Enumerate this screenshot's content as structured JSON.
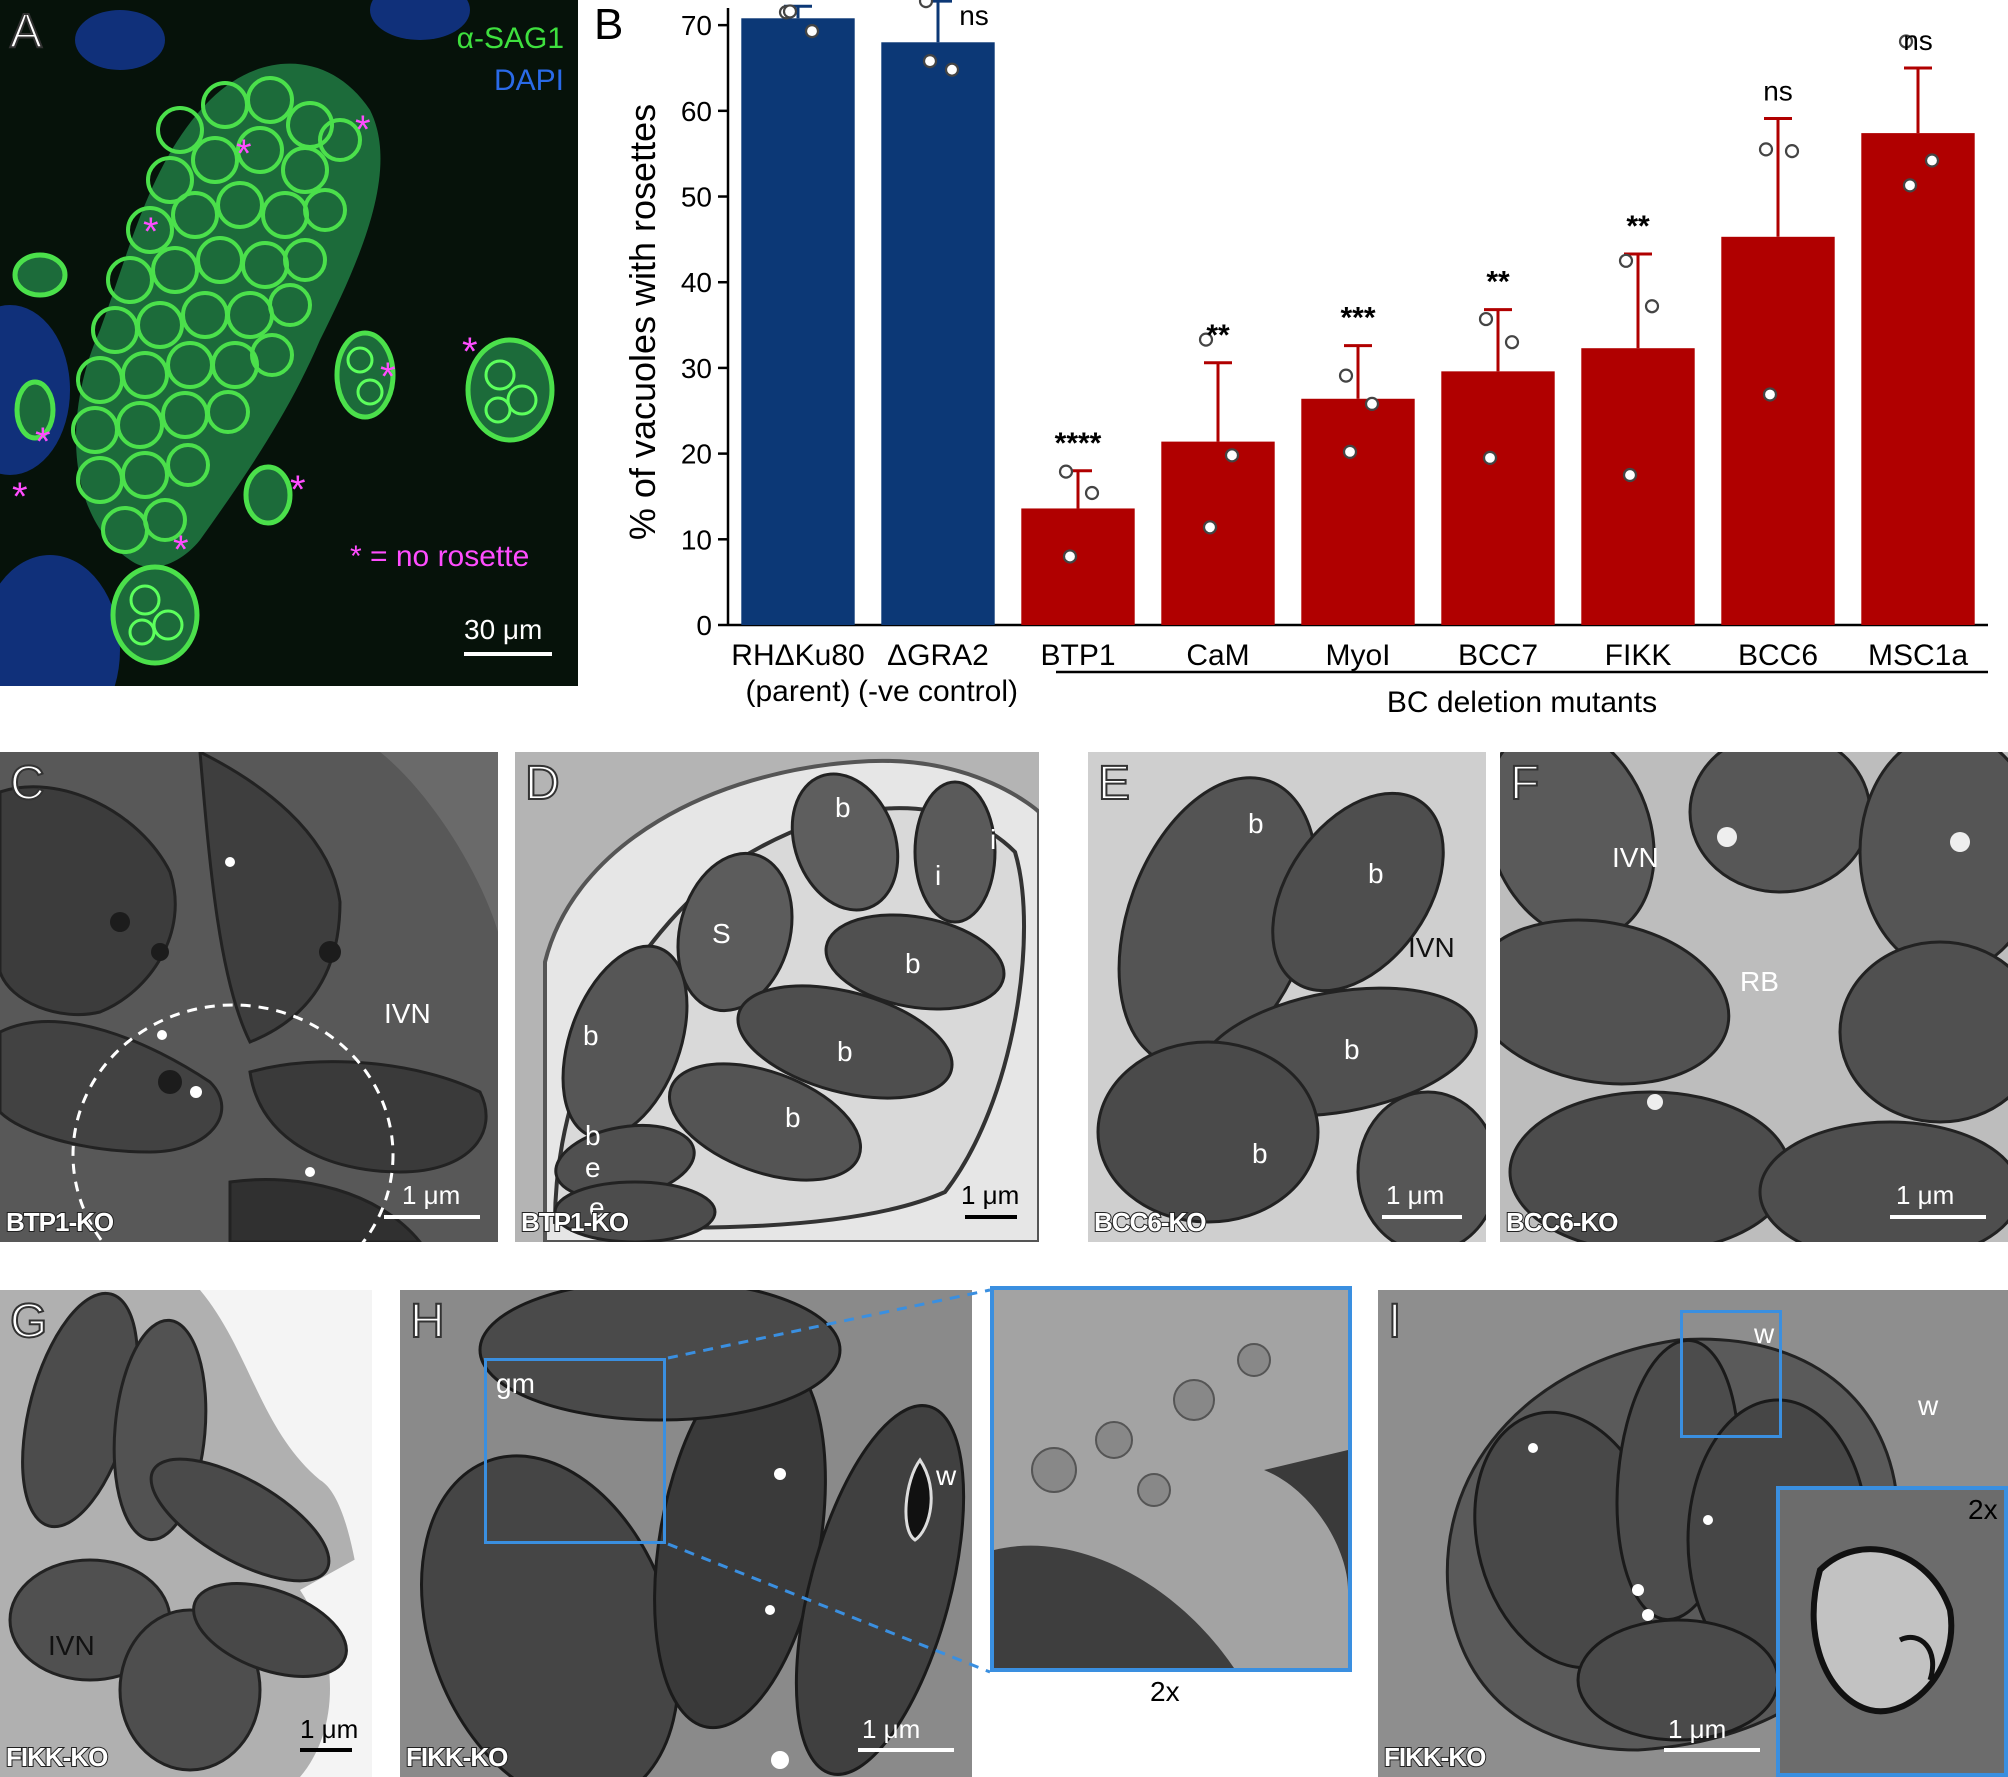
{
  "panel_letters": {
    "A": "A",
    "B": "B",
    "C": "C",
    "D": "D",
    "E": "E",
    "F": "F",
    "G": "G",
    "H": "H",
    "I": "I"
  },
  "panel_a": {
    "legend_sag1": "α-SAG1",
    "legend_dapi": "DAPI",
    "asterisk": "*",
    "no_rosette_note": "* = no rosette",
    "scale_label": "30 μm",
    "colors": {
      "sag1": "#3ccf3c",
      "dapi": "#1a4aa8",
      "asterisk": "#ff4dff"
    }
  },
  "chart_data": {
    "type": "bar",
    "ylabel": "% of vacuoles with rosettes",
    "ylim": [
      0,
      72
    ],
    "yticks": [
      0,
      10,
      20,
      30,
      40,
      50,
      60,
      70
    ],
    "categories": [
      "RHΔKu80\n(parent)",
      "ΔGRA2\n(-ve control)",
      "BTP1",
      "CaM",
      "MyoI",
      "BCC7",
      "FIKK",
      "BCC6",
      "MSC1a"
    ],
    "category_lines": [
      [
        "RHΔKu80",
        "(parent)"
      ],
      [
        "ΔGRA2",
        "(-ve control)"
      ],
      [
        "BTP1"
      ],
      [
        "CaM"
      ],
      [
        "MyoI"
      ],
      [
        "BCC7"
      ],
      [
        "FIKK"
      ],
      [
        "BCC6"
      ],
      [
        "MSC1a"
      ]
    ],
    "values": [
      70.8,
      68.0,
      13.6,
      21.4,
      26.4,
      29.6,
      32.3,
      45.3,
      57.4
    ],
    "errors": [
      1.4,
      4.8,
      4.4,
      9.2,
      6.2,
      7.2,
      11.0,
      13.8,
      7.6
    ],
    "points": [
      [
        71.5,
        69.3,
        71.6
      ],
      [
        72.8,
        64.8,
        65.8
      ],
      [
        17.9,
        15.4,
        8.0
      ],
      [
        33.3,
        19.8,
        11.4
      ],
      [
        29.1,
        25.8,
        20.2
      ],
      [
        35.7,
        33.0,
        19.5
      ],
      [
        42.5,
        37.2,
        17.5
      ],
      [
        55.5,
        55.3,
        26.9
      ],
      [
        68.1,
        54.2,
        51.3
      ]
    ],
    "significance": [
      "",
      "ns",
      "****",
      "**",
      "***",
      "**",
      "**",
      "ns",
      "ns"
    ],
    "bar_colors": [
      "#0c3876",
      "#0c3876",
      "#b00000",
      "#b00000",
      "#b00000",
      "#b00000",
      "#b00000",
      "#b00000",
      "#b00000"
    ],
    "error_colors": [
      "#0c3876",
      "#0c3876",
      "#b00000",
      "#b00000",
      "#b00000",
      "#b00000",
      "#b00000",
      "#b00000",
      "#b00000"
    ],
    "group_label": "BC deletion mutants",
    "grid": false
  },
  "panel_c": {
    "ivn": "IVN",
    "scale_label": "1 μm",
    "strain": "BTP1-KO"
  },
  "panel_d": {
    "labels": [
      "b",
      "i",
      "i",
      "S",
      "b",
      "b",
      "b",
      "b",
      "b",
      "e",
      "e"
    ],
    "scale_label": "1 μm",
    "strain": "BTP1-KO"
  },
  "panel_e": {
    "labels": [
      "b",
      "b",
      "b",
      "b"
    ],
    "ivn": "IVN",
    "scale_label": "1 μm",
    "strain": "BCC6-KO"
  },
  "panel_f": {
    "ivn": "IVN",
    "rb": "RB",
    "scale_label": "1 μm",
    "strain": "BCC6-KO"
  },
  "panel_g": {
    "ivn": "IVN",
    "scale_label": "1 μm",
    "strain": "FIKK-KO"
  },
  "panel_h": {
    "gm": "gm",
    "w": "w",
    "zoom": "2x",
    "scale_label": "1 μm",
    "strain": "FIKK-KO"
  },
  "panel_i": {
    "w1": "w",
    "w2": "w",
    "zoom": "2x",
    "scale_label": "1 μm",
    "strain": "FIKK-KO"
  }
}
